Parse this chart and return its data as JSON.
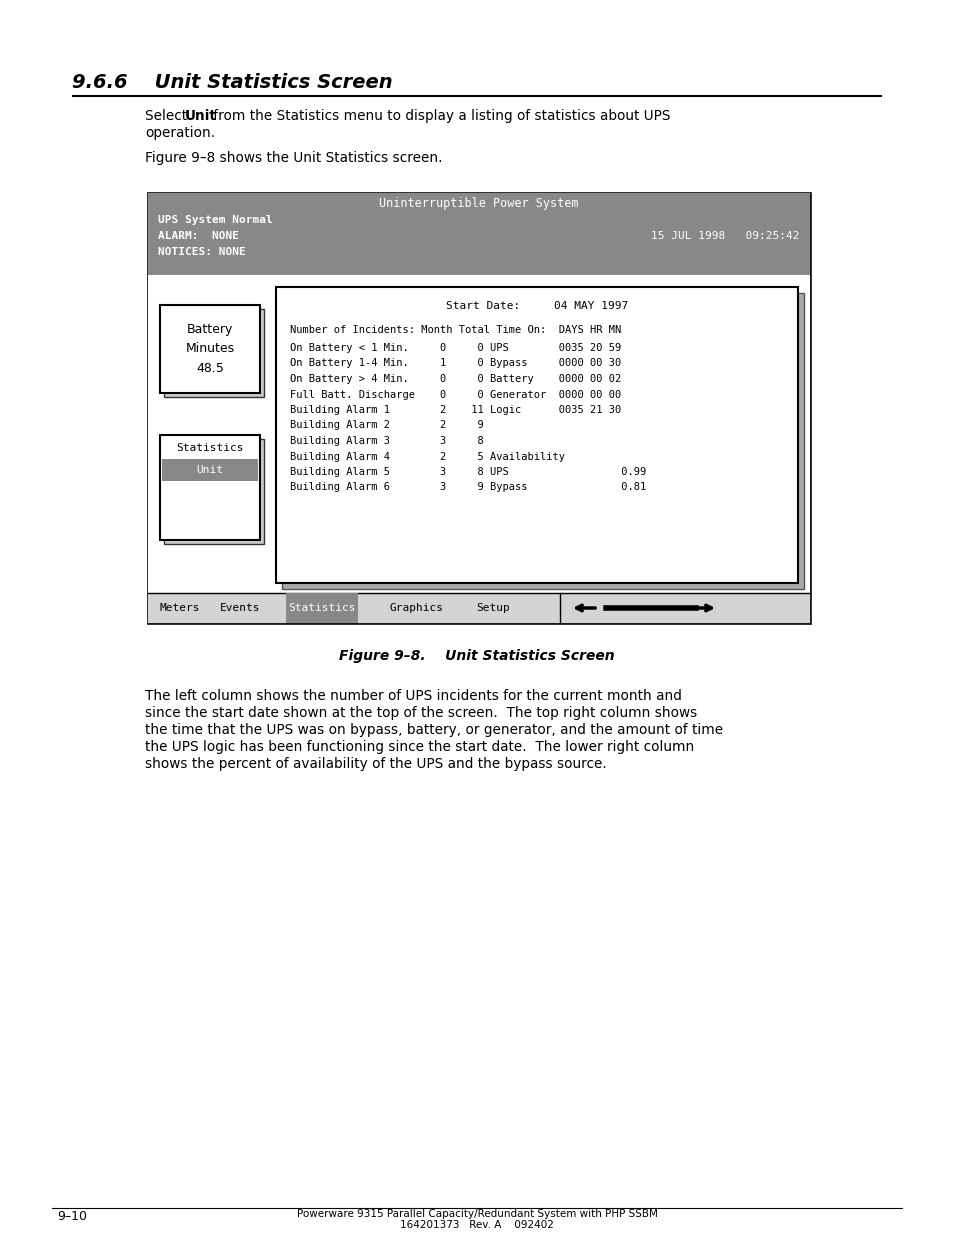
{
  "page_bg": "#ffffff",
  "title_section": "9.6.6    Unit Statistics Screen",
  "para1_prefix": "Select ",
  "para1_bold": "Unit",
  "para1_suffix": " from the Statistics menu to display a listing of statistics about UPS",
  "para1_line2": "operation.",
  "para2": "Figure 9–8 shows the Unit Statistics screen.",
  "screen_title": "Uninterruptible Power System",
  "screen_header_bg": "#888888",
  "screen_status_line1": "UPS System Normal",
  "screen_status_line2": "ALARM:  NONE",
  "screen_status_line3": "NOTICES: NONE",
  "screen_datetime": "15 JUL 1998   09:25:42",
  "battery_box_text": "Battery\nMinutes\n48.5",
  "stats_menu_label": "Statistics",
  "unit_menu_label": "Unit",
  "inner_screen_title": "Start Date:     04 MAY 1997",
  "inner_header": "Number of Incidents: Month Total Time On:  DAYS HR MN",
  "data_rows": [
    "On Battery < 1 Min.     0     0 UPS        0035 20 59",
    "On Battery 1-4 Min.     1     0 Bypass     0000 00 30",
    "On Battery > 4 Min.     0     0 Battery    0000 00 02",
    "Full Batt. Discharge    0     0 Generator  0000 00 00",
    "Building Alarm 1        2    11 Logic      0035 21 30",
    "Building Alarm 2        2     9",
    "Building Alarm 3        3     8",
    "Building Alarm 4        2     5 Availability",
    "Building Alarm 5        3     8 UPS                  0.99",
    "Building Alarm 6        3     9 Bypass               0.81"
  ],
  "bottom_menu": [
    "Meters",
    "Events",
    "Statistics",
    "Graphics",
    "Setup"
  ],
  "bottom_menu_active": "Statistics",
  "figure_caption": "Figure 9–8.    Unit Statistics Screen",
  "body_text_lines": [
    "The left column shows the number of UPS incidents for the current month and",
    "since the start date shown at the top of the screen.  The top right column shows",
    "the time that the UPS was on bypass, battery, or generator, and the amount of time",
    "the UPS logic has been functioning since the start date.  The lower right column",
    "shows the percent of availability of the UPS and the bypass source."
  ],
  "footer_left": "9–10",
  "footer_center1": "Powerware 9315 Parallel Capacity/Redundant System with PHP SSBM",
  "footer_center2": "164201373   Rev. A    092402"
}
